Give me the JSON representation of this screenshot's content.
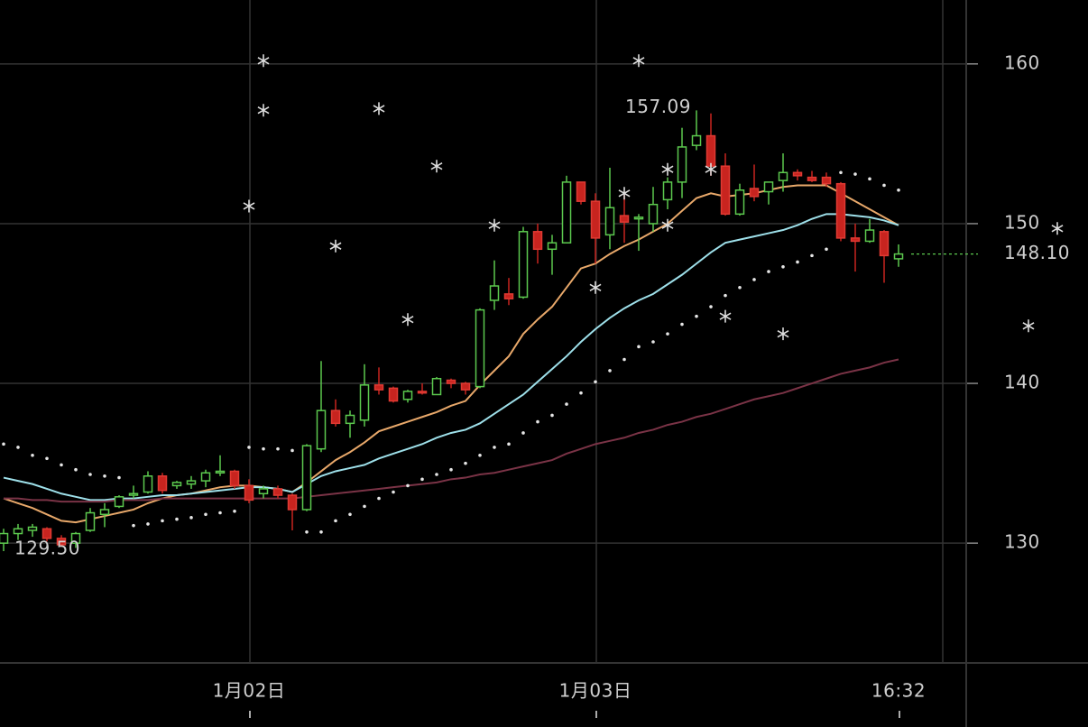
{
  "chart_data": {
    "type": "candlestick",
    "categories": [
      null,
      null,
      null,
      null,
      null,
      null,
      null,
      null,
      null,
      null,
      null,
      null,
      null,
      null,
      null,
      null,
      null,
      "1月02日",
      null,
      null,
      null,
      null,
      null,
      null,
      null,
      null,
      null,
      null,
      null,
      null,
      null,
      null,
      null,
      null,
      null,
      null,
      null,
      null,
      null,
      null,
      null,
      "1月03日",
      null,
      null,
      null,
      null,
      null,
      null,
      null,
      null,
      null,
      null,
      null,
      null,
      null,
      null,
      null,
      null,
      null,
      null,
      null,
      null,
      "16:32"
    ],
    "open": [
      130.0,
      130.6,
      130.8,
      130.9,
      130.3,
      130.0,
      130.8,
      131.8,
      132.3,
      133.0,
      133.2,
      134.2,
      133.6,
      133.7,
      133.9,
      134.4,
      134.5,
      133.6,
      133.1,
      133.4,
      133.0,
      132.1,
      135.9,
      138.3,
      137.5,
      137.7,
      139.9,
      139.7,
      139.0,
      139.5,
      139.3,
      140.2,
      140.0,
      139.8,
      145.2,
      145.6,
      145.4,
      149.5,
      148.4,
      148.8,
      152.6,
      151.4,
      149.3,
      150.5,
      150.3,
      150.0,
      151.5,
      152.6,
      154.9,
      155.5,
      153.6,
      150.6,
      152.2,
      152.0,
      152.7,
      153.2,
      152.9,
      152.9,
      152.5,
      149.1,
      148.9,
      149.5,
      147.8
    ],
    "high": [
      130.9,
      131.2,
      131.2,
      131.0,
      130.5,
      130.7,
      132.2,
      132.5,
      133.0,
      133.6,
      134.5,
      134.4,
      133.9,
      134.2,
      134.6,
      135.5,
      134.6,
      134.0,
      133.6,
      133.6,
      133.1,
      136.2,
      141.4,
      139.0,
      138.3,
      141.2,
      141.0,
      139.8,
      139.6,
      140.0,
      140.4,
      140.3,
      140.1,
      144.7,
      147.7,
      146.6,
      149.8,
      150.0,
      149.3,
      153.0,
      152.6,
      151.9,
      153.5,
      152.0,
      150.6,
      152.3,
      152.9,
      156.0,
      157.09,
      156.9,
      154.4,
      152.5,
      153.7,
      152.6,
      154.4,
      153.4,
      153.3,
      153.2,
      152.6,
      150.0,
      150.3,
      149.6,
      148.7
    ],
    "low": [
      129.5,
      130.2,
      130.4,
      130.1,
      129.8,
      129.7,
      130.7,
      131.0,
      132.2,
      132.8,
      133.1,
      133.1,
      133.4,
      133.4,
      133.5,
      134.2,
      133.4,
      132.5,
      132.8,
      132.8,
      130.8,
      132.0,
      135.7,
      137.3,
      136.6,
      137.3,
      139.3,
      138.8,
      138.8,
      139.3,
      139.3,
      139.7,
      139.3,
      139.7,
      144.6,
      144.9,
      145.3,
      147.5,
      146.8,
      148.8,
      151.2,
      147.5,
      148.4,
      148.8,
      148.3,
      149.5,
      150.9,
      151.6,
      154.6,
      153.0,
      150.5,
      150.5,
      151.4,
      151.2,
      152.0,
      152.7,
      152.6,
      152.3,
      148.9,
      147.0,
      148.8,
      146.3,
      147.3
    ],
    "close": [
      130.6,
      130.9,
      131.0,
      130.3,
      129.9,
      130.6,
      131.9,
      132.1,
      132.9,
      133.1,
      134.2,
      133.3,
      133.8,
      133.9,
      134.4,
      134.5,
      133.6,
      132.7,
      133.4,
      133.0,
      132.1,
      136.1,
      138.3,
      137.5,
      138.0,
      139.9,
      139.6,
      138.9,
      139.5,
      139.4,
      140.3,
      140.0,
      139.6,
      144.6,
      146.1,
      145.3,
      149.5,
      148.4,
      148.8,
      152.6,
      151.4,
      149.1,
      151.0,
      150.1,
      150.4,
      151.2,
      152.6,
      154.8,
      155.5,
      153.6,
      150.6,
      152.1,
      151.7,
      152.6,
      153.2,
      153.0,
      152.7,
      152.5,
      149.1,
      148.9,
      149.6,
      148.0,
      148.1
    ],
    "up_color": "#5cc94e",
    "down_color": "#c8241f",
    "series": [
      {
        "color": "#e8a86a",
        "values": [
          132.8,
          132.5,
          132.2,
          131.8,
          131.4,
          131.3,
          131.5,
          131.7,
          131.9,
          132.1,
          132.5,
          132.8,
          133.0,
          133.1,
          133.3,
          133.5,
          133.6,
          133.6,
          133.5,
          133.4,
          133.2,
          133.8,
          134.5,
          135.2,
          135.7,
          136.3,
          137.0,
          137.3,
          137.6,
          137.9,
          138.2,
          138.6,
          138.9,
          139.9,
          140.8,
          141.7,
          143.1,
          144.0,
          144.8,
          146.0,
          147.2,
          147.5,
          148.1,
          148.6,
          149.0,
          149.5,
          150.0,
          150.8,
          151.6,
          151.9,
          151.7,
          151.8,
          151.9,
          152.1,
          152.3,
          152.4,
          152.4,
          152.4,
          151.9,
          151.4,
          150.9,
          150.4,
          149.9
        ]
      },
      {
        "color": "#9ee0ea",
        "values": [
          134.1,
          133.9,
          133.7,
          133.4,
          133.1,
          132.9,
          132.7,
          132.7,
          132.8,
          132.8,
          132.9,
          133.0,
          133.0,
          133.1,
          133.2,
          133.3,
          133.4,
          133.5,
          133.5,
          133.4,
          133.2,
          133.7,
          134.2,
          134.5,
          134.7,
          134.9,
          135.3,
          135.6,
          135.9,
          136.2,
          136.6,
          136.9,
          137.1,
          137.5,
          138.1,
          138.7,
          139.3,
          140.1,
          140.9,
          141.7,
          142.6,
          143.4,
          144.1,
          144.7,
          145.2,
          145.6,
          146.2,
          146.8,
          147.5,
          148.2,
          148.8,
          149.0,
          149.2,
          149.4,
          149.6,
          149.9,
          150.3,
          150.6,
          150.6,
          150.5,
          150.4,
          150.2,
          149.9
        ]
      },
      {
        "color": "#7a3346",
        "values": [
          132.8,
          132.8,
          132.7,
          132.7,
          132.6,
          132.6,
          132.6,
          132.6,
          132.7,
          132.7,
          132.7,
          132.8,
          132.8,
          132.8,
          132.8,
          132.8,
          132.8,
          132.8,
          132.8,
          132.8,
          132.8,
          132.9,
          133.0,
          133.1,
          133.2,
          133.3,
          133.4,
          133.5,
          133.6,
          133.7,
          133.8,
          134.0,
          134.1,
          134.3,
          134.4,
          134.6,
          134.8,
          135.0,
          135.2,
          135.6,
          135.9,
          136.2,
          136.4,
          136.6,
          136.9,
          137.1,
          137.4,
          137.6,
          137.9,
          138.1,
          138.4,
          138.7,
          139.0,
          139.2,
          139.4,
          139.7,
          140.0,
          140.3,
          140.6,
          140.8,
          141.0,
          141.3,
          141.5
        ]
      }
    ],
    "sar": {
      "color": "#e6e6e6",
      "values": [
        136.2,
        136.0,
        135.5,
        135.3,
        134.9,
        134.6,
        134.3,
        134.2,
        134.1,
        131.1,
        131.2,
        131.4,
        131.5,
        131.6,
        131.8,
        131.9,
        132.0,
        136.0,
        135.9,
        135.9,
        135.8,
        130.7,
        130.7,
        131.4,
        131.8,
        132.3,
        132.8,
        133.2,
        133.6,
        134.0,
        134.3,
        134.6,
        135.0,
        135.5,
        136.0,
        136.2,
        136.9,
        137.6,
        138.0,
        138.7,
        139.4,
        140.1,
        140.8,
        141.5,
        142.3,
        142.6,
        143.1,
        143.7,
        144.2,
        144.8,
        145.5,
        146.0,
        146.5,
        147.0,
        147.3,
        147.6,
        148.0,
        148.4,
        153.2,
        153.1,
        152.8,
        152.4,
        152.1
      ]
    },
    "markers": {
      "color": "#dddddd",
      "x": [
        18,
        18,
        17,
        23,
        26,
        30,
        28,
        34,
        41,
        43,
        44,
        46,
        46,
        49,
        50,
        54,
        73,
        71
      ],
      "values": [
        160.2,
        157.1,
        151.1,
        148.6,
        157.2,
        153.6,
        144.0,
        149.9,
        146.0,
        151.9,
        160.2,
        153.4,
        149.9,
        153.4,
        144.2,
        143.1,
        149.7,
        143.6
      ]
    },
    "max_label": "157.09",
    "min_label": "129.50",
    "last_label": "148.10",
    "ylim": [
      122.5,
      164.0
    ],
    "yticks": [
      130,
      140,
      150,
      160
    ],
    "grid": true
  }
}
